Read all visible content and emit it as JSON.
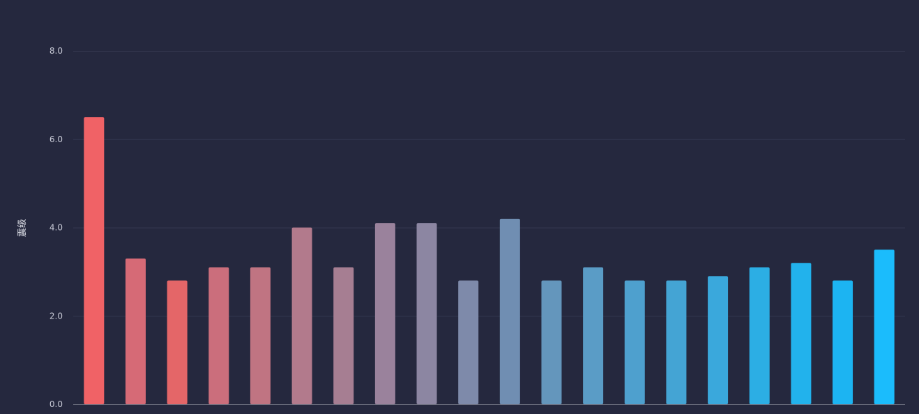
{
  "chart_data": {
    "type": "bar",
    "title": "",
    "xlabel": "",
    "ylabel": "震级",
    "ylim": [
      0,
      8
    ],
    "yticks": [
      "0.0",
      "2.0",
      "4.0",
      "6.0",
      "8.0"
    ],
    "grid": true,
    "values": [
      6.5,
      3.3,
      2.8,
      3.1,
      3.1,
      4.0,
      3.1,
      4.1,
      4.1,
      2.8,
      4.2,
      2.8,
      3.1,
      2.8,
      2.8,
      2.9,
      3.1,
      3.2,
      2.8,
      3.5
    ],
    "colors": [
      "#f06266",
      "#d66a76",
      "#e46668",
      "#cb6e7c",
      "#c07482",
      "#b27a8c",
      "#a67e92",
      "#9a829c",
      "#8c86a2",
      "#7e8aaa",
      "#708eb2",
      "#6496bc",
      "#5a9cc6",
      "#4ea0ce",
      "#44a4d4",
      "#3aa8dc",
      "#2caee4",
      "#22b2ec",
      "#1cb4f2",
      "#1bbcfc"
    ]
  }
}
